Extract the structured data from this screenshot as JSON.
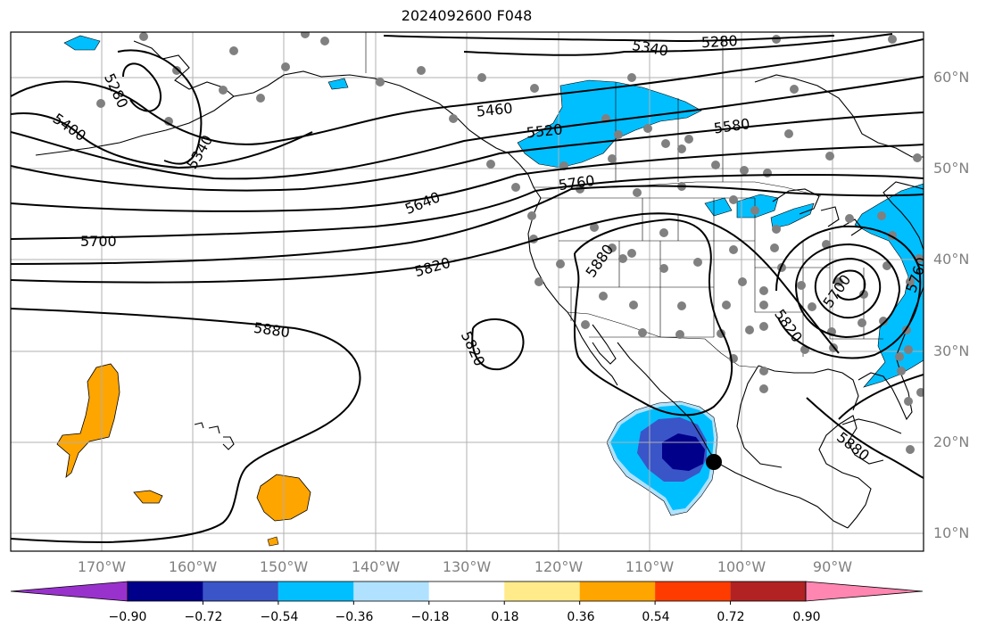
{
  "title": "2024092600 F048",
  "lat_labels": [
    "60°N",
    "50°N",
    "40°N",
    "30°N",
    "20°N",
    "10°N"
  ],
  "lon_labels": [
    "170°W",
    "160°W",
    "150°W",
    "140°W",
    "130°W",
    "120°W",
    "110°W",
    "100°W",
    "90°W"
  ],
  "contour_labels": [
    "5280",
    "5340",
    "5400",
    "5460",
    "5520",
    "5580",
    "5640",
    "5700",
    "5760",
    "5820",
    "5880",
    "5280",
    "5340",
    "5820",
    "5880",
    "5700",
    "5820",
    "5760",
    "5880"
  ],
  "colorbar": {
    "ticks": [
      "−0.90",
      "−0.72",
      "−0.54",
      "−0.36",
      "−0.18",
      "0.18",
      "0.36",
      "0.54",
      "0.72",
      "0.90"
    ],
    "colors": [
      "#9932cc",
      "#00008b",
      "#3a55c8",
      "#00bfff",
      "#b0e2ff",
      "#ffffff",
      "#ffeb8a",
      "#ffa500",
      "#ff3c00",
      "#b22222",
      "#ff86b0"
    ]
  }
}
